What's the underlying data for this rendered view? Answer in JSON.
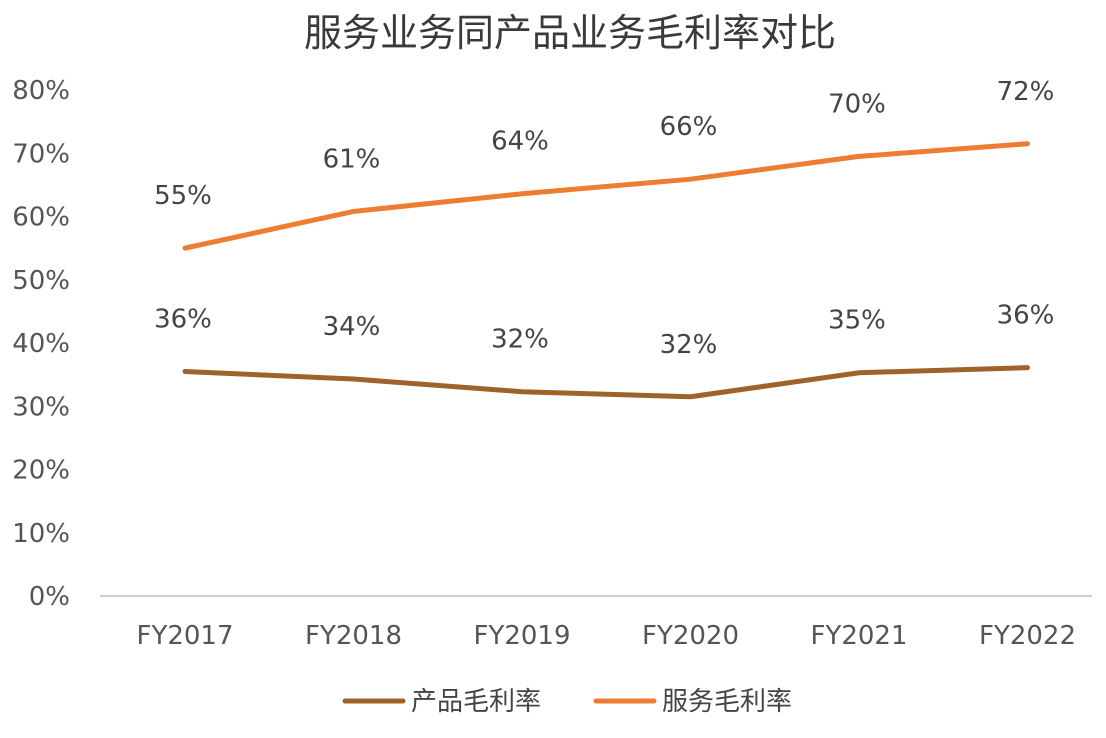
{
  "chart_data": {
    "type": "line",
    "title": "服务业务同产品业务毛利率对比",
    "xlabel": "",
    "ylabel": "",
    "categories": [
      "FY2017",
      "FY2018",
      "FY2019",
      "FY2020",
      "FY2021",
      "FY2022"
    ],
    "y_ticks": [
      "0%",
      "10%",
      "20%",
      "30%",
      "40%",
      "50%",
      "60%",
      "70%",
      "80%"
    ],
    "ylim": [
      0,
      80
    ],
    "grid": false,
    "legend_position": "bottom",
    "series": [
      {
        "name": "产品毛利率",
        "color": "#a0622b",
        "values": [
          36,
          34,
          32,
          32,
          35,
          36
        ],
        "plot_values": [
          35.5,
          34.3,
          32.3,
          31.5,
          35.3,
          36.1
        ],
        "labels": [
          "36%",
          "34%",
          "32%",
          "32%",
          "35%",
          "36%"
        ]
      },
      {
        "name": "服务毛利率",
        "color": "#ed7d31",
        "values": [
          55,
          61,
          64,
          66,
          70,
          72
        ],
        "plot_values": [
          55.0,
          60.8,
          63.6,
          65.9,
          69.5,
          71.5
        ],
        "labels": [
          "55%",
          "61%",
          "64%",
          "66%",
          "70%",
          "72%"
        ]
      }
    ]
  }
}
